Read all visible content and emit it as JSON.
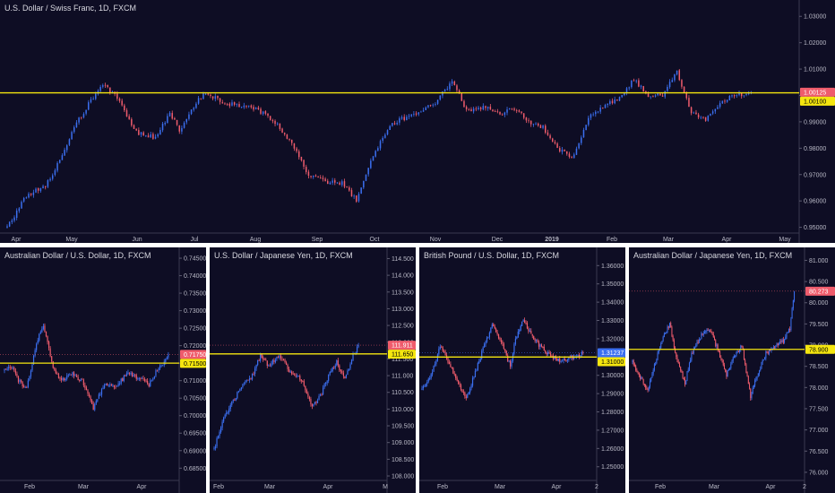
{
  "colors": {
    "background": "#0e0d24",
    "bull": "#3b6ff0",
    "bear": "#ef5c6c",
    "support_line": "#f5e60f",
    "axis_text": "#b9b9c6",
    "pane_border": "#ffffff"
  },
  "chart_data": [
    {
      "type": "candlestick",
      "title": "U.S. Dollar / Swiss Franc, 1D, FXCM",
      "y_ticks": [
        "1.03000",
        "1.02000",
        "1.01000",
        "1.00000",
        "0.99000",
        "0.98000",
        "0.97000",
        "0.96000",
        "0.95000"
      ],
      "ylim": [
        0.9485,
        1.0345
      ],
      "x_labels": [
        "Apr",
        "May",
        "Jun",
        "Jul",
        "Aug",
        "Sep",
        "Oct",
        "Nov",
        "Dec",
        "2019",
        "Feb",
        "Mar",
        "Apr",
        "May"
      ],
      "x_emphasis": "2019",
      "horizontal_line": 1.001,
      "price_badges": [
        {
          "text": "1.00125",
          "value": 1.00125,
          "color": "#ef5c6c",
          "text_color": "#ffffff"
        },
        {
          "text": "1.00100",
          "value": 1.001,
          "color": "#f5e60f",
          "text_color": "#000000"
        }
      ],
      "path": [
        [
          0,
          0.95
        ],
        [
          8,
          0.962
        ],
        [
          16,
          0.966
        ],
        [
          22,
          0.975
        ],
        [
          28,
          0.988
        ],
        [
          35,
          0.998
        ],
        [
          40,
          1.004
        ],
        [
          46,
          0.999
        ],
        [
          54,
          0.986
        ],
        [
          62,
          0.984
        ],
        [
          68,
          0.993
        ],
        [
          72,
          0.987
        ],
        [
          80,
          0.999
        ],
        [
          84,
          1.001
        ],
        [
          90,
          0.997
        ],
        [
          100,
          0.996
        ],
        [
          108,
          0.993
        ],
        [
          112,
          0.99
        ],
        [
          118,
          0.983
        ],
        [
          126,
          0.97
        ],
        [
          134,
          0.967
        ],
        [
          140,
          0.967
        ],
        [
          146,
          0.96
        ],
        [
          152,
          0.975
        ],
        [
          160,
          0.989
        ],
        [
          168,
          0.992
        ],
        [
          174,
          0.995
        ],
        [
          180,
          0.998
        ],
        [
          186,
          1.006
        ],
        [
          192,
          0.994
        ],
        [
          200,
          0.996
        ],
        [
          206,
          0.993
        ],
        [
          212,
          0.995
        ],
        [
          218,
          0.99
        ],
        [
          224,
          0.988
        ],
        [
          230,
          0.98
        ],
        [
          236,
          0.976
        ],
        [
          244,
          0.993
        ],
        [
          250,
          0.996
        ],
        [
          256,
          0.999
        ],
        [
          262,
          1.006
        ],
        [
          268,
          1.0
        ],
        [
          274,
          1.0
        ],
        [
          280,
          1.009
        ],
        [
          286,
          0.994
        ],
        [
          292,
          0.991
        ],
        [
          298,
          0.997
        ],
        [
          304,
          1.0
        ],
        [
          311,
          1.001
        ]
      ],
      "last_value": 1.00125
    },
    {
      "type": "candlestick",
      "title": "Australian Dollar / U.S. Dollar, 1D, FXCM",
      "y_ticks": [
        "0.74500",
        "0.74000",
        "0.73500",
        "0.73000",
        "0.72500",
        "0.72000",
        "0.71500",
        "0.71000",
        "0.70500",
        "0.70000",
        "0.69500",
        "0.69000",
        "0.68500"
      ],
      "ylim": [
        0.682,
        0.7468
      ],
      "x_labels": [
        "Feb",
        "Mar",
        "Apr"
      ],
      "horizontal_line": 0.715,
      "price_badges": [
        {
          "text": "0.71750",
          "value": 0.7175,
          "color": "#ef5c6c",
          "text_color": "#ffffff"
        },
        {
          "text": "0.71500",
          "value": 0.715,
          "color": "#f5e60f",
          "text_color": "#000000"
        }
      ],
      "path": [
        [
          0,
          0.713
        ],
        [
          6,
          0.714
        ],
        [
          10,
          0.71
        ],
        [
          16,
          0.708
        ],
        [
          24,
          0.722
        ],
        [
          28,
          0.726
        ],
        [
          34,
          0.715
        ],
        [
          40,
          0.71
        ],
        [
          48,
          0.712
        ],
        [
          56,
          0.71
        ],
        [
          64,
          0.702
        ],
        [
          72,
          0.709
        ],
        [
          80,
          0.708
        ],
        [
          88,
          0.712
        ],
        [
          96,
          0.711
        ],
        [
          104,
          0.709
        ],
        [
          110,
          0.713
        ],
        [
          118,
          0.717
        ]
      ],
      "last_value": 0.7175
    },
    {
      "type": "candlestick",
      "title": "U.S. Dollar / Japanese Yen, 1D, FXCM",
      "y_ticks": [
        "114.500",
        "114.000",
        "113.500",
        "113.000",
        "112.500",
        "112.000",
        "111.500",
        "111.000",
        "110.500",
        "110.000",
        "109.500",
        "109.000",
        "108.500",
        "108.000"
      ],
      "ylim": [
        107.92,
        114.7
      ],
      "x_labels": [
        "Feb",
        "Mar",
        "Apr",
        "M"
      ],
      "horizontal_line": 111.65,
      "price_badges": [
        {
          "text": "111.911",
          "value": 111.911,
          "color": "#ef5c6c",
          "text_color": "#ffffff"
        },
        {
          "text": "111.650",
          "value": 111.65,
          "color": "#f5e60f",
          "text_color": "#000000"
        }
      ],
      "path": [
        [
          0,
          108.8
        ],
        [
          6,
          109.6
        ],
        [
          12,
          110.1
        ],
        [
          20,
          110.7
        ],
        [
          28,
          111.0
        ],
        [
          34,
          111.6
        ],
        [
          40,
          111.3
        ],
        [
          48,
          111.6
        ],
        [
          56,
          111.1
        ],
        [
          64,
          110.9
        ],
        [
          72,
          110.1
        ],
        [
          78,
          110.4
        ],
        [
          84,
          111.0
        ],
        [
          90,
          111.4
        ],
        [
          96,
          110.9
        ],
        [
          102,
          111.6
        ],
        [
          106,
          111.9
        ]
      ],
      "last_value": 111.911
    },
    {
      "type": "candlestick",
      "title": "British Pound / U.S. Dollar, 1D, FXCM",
      "y_ticks": [
        "1.36000",
        "1.35000",
        "1.34000",
        "1.33000",
        "1.32000",
        "1.31000",
        "1.30000",
        "1.29000",
        "1.28000",
        "1.27000",
        "1.26000",
        "1.25000"
      ],
      "ylim": [
        1.2435,
        1.3675
      ],
      "x_labels": [
        "Feb",
        "Mar",
        "Apr",
        "2"
      ],
      "horizontal_line": 1.31,
      "price_badges": [
        {
          "text": "1.31237",
          "value": 1.31237,
          "color": "#3b6ff0",
          "text_color": "#ffffff"
        },
        {
          "text": "1.31000",
          "value": 1.31,
          "color": "#f5e60f",
          "text_color": "#000000"
        }
      ],
      "path": [
        [
          0,
          1.292
        ],
        [
          8,
          1.302
        ],
        [
          14,
          1.316
        ],
        [
          20,
          1.308
        ],
        [
          28,
          1.295
        ],
        [
          34,
          1.287
        ],
        [
          40,
          1.3
        ],
        [
          48,
          1.316
        ],
        [
          54,
          1.328
        ],
        [
          60,
          1.32
        ],
        [
          68,
          1.305
        ],
        [
          72,
          1.32
        ],
        [
          78,
          1.33
        ],
        [
          86,
          1.32
        ],
        [
          92,
          1.315
        ],
        [
          100,
          1.31
        ],
        [
          108,
          1.308
        ],
        [
          116,
          1.31
        ],
        [
          124,
          1.312
        ]
      ],
      "last_value": 1.31237
    },
    {
      "type": "candlestick",
      "title": "Australian Dollar / Japanese Yen, 1D, FXCM",
      "y_ticks": [
        "81.000",
        "80.500",
        "80.000",
        "79.500",
        "79.000",
        "78.500",
        "78.000",
        "77.500",
        "77.000",
        "76.500",
        "76.000"
      ],
      "ylim": [
        75.85,
        81.2
      ],
      "x_labels": [
        "Feb",
        "Mar",
        "Apr",
        "2"
      ],
      "horizontal_line": 78.9,
      "price_badges": [
        {
          "text": "80.273",
          "value": 80.273,
          "color": "#ef5c6c",
          "text_color": "#ffffff"
        },
        {
          "text": "78.900",
          "value": 78.9,
          "color": "#f5e60f",
          "text_color": "#000000"
        }
      ],
      "path": [
        [
          0,
          78.6
        ],
        [
          8,
          78.2
        ],
        [
          14,
          77.9
        ],
        [
          20,
          78.5
        ],
        [
          28,
          79.2
        ],
        [
          34,
          79.5
        ],
        [
          40,
          78.7
        ],
        [
          48,
          78.1
        ],
        [
          54,
          78.8
        ],
        [
          62,
          79.2
        ],
        [
          70,
          79.4
        ],
        [
          78,
          78.9
        ],
        [
          86,
          78.3
        ],
        [
          92,
          78.7
        ],
        [
          100,
          79.0
        ],
        [
          108,
          77.8
        ],
        [
          114,
          78.3
        ],
        [
          122,
          78.8
        ],
        [
          130,
          79.0
        ],
        [
          138,
          79.1
        ],
        [
          144,
          79.4
        ],
        [
          148,
          80.3
        ]
      ],
      "last_value": 80.273
    }
  ]
}
